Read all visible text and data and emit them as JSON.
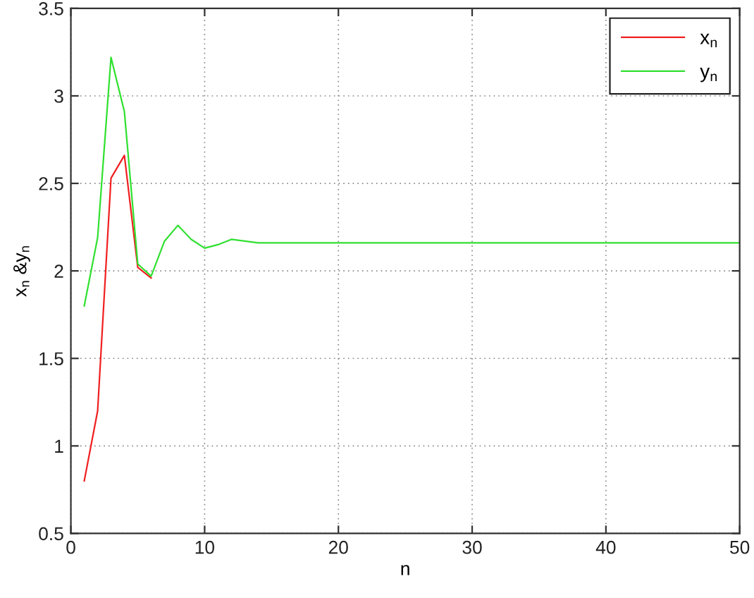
{
  "chart_data": {
    "type": "line",
    "xlabel": "n",
    "ylabel": "x$_{n}$ &y$_{n}$",
    "x": [
      1,
      2,
      3,
      4,
      5,
      6,
      7,
      8,
      9,
      10,
      11,
      12,
      13,
      14,
      15,
      16,
      17,
      18,
      19,
      20,
      21,
      22,
      23,
      24,
      25,
      26,
      27,
      28,
      29,
      30,
      31,
      32,
      33,
      34,
      35,
      36,
      37,
      38,
      39,
      40,
      41,
      42,
      43,
      44,
      45,
      46,
      47,
      48,
      49,
      50
    ],
    "series": [
      {
        "name": "x$_{n}$",
        "color": "#f02020",
        "values": [
          0.8,
          1.2,
          2.53,
          2.66,
          2.02,
          1.96,
          null,
          null,
          null,
          null,
          null,
          null,
          null,
          null,
          null,
          null,
          null,
          null,
          null,
          null,
          null,
          null,
          null,
          null,
          null,
          null,
          null,
          null,
          null,
          null,
          null,
          null,
          null,
          null,
          null,
          null,
          null,
          null,
          null,
          null,
          null,
          null,
          null,
          null,
          null,
          null,
          null,
          null,
          null,
          null
        ]
      },
      {
        "name": "y$_{n}$",
        "color": "#30e030",
        "values": [
          1.8,
          2.19,
          3.22,
          2.91,
          2.04,
          1.97,
          2.17,
          2.26,
          2.18,
          2.13,
          2.15,
          2.18,
          2.17,
          2.16,
          2.16,
          2.16,
          2.16,
          2.16,
          2.16,
          2.16,
          2.16,
          2.16,
          2.16,
          2.16,
          2.16,
          2.16,
          2.16,
          2.16,
          2.16,
          2.16,
          2.16,
          2.16,
          2.16,
          2.16,
          2.16,
          2.16,
          2.16,
          2.16,
          2.16,
          2.16,
          2.16,
          2.16,
          2.16,
          2.16,
          2.16,
          2.16,
          2.16,
          2.16,
          2.16,
          2.16
        ]
      }
    ],
    "xlim": [
      0,
      50
    ],
    "xticks": [
      0,
      10,
      20,
      30,
      40,
      50
    ],
    "ylim": [
      0.5,
      3.5
    ],
    "yticks": [
      0.5,
      1,
      1.5,
      2,
      2.5,
      3,
      3.5
    ],
    "grid": true,
    "legend": "top right",
    "line_style": "solid"
  }
}
